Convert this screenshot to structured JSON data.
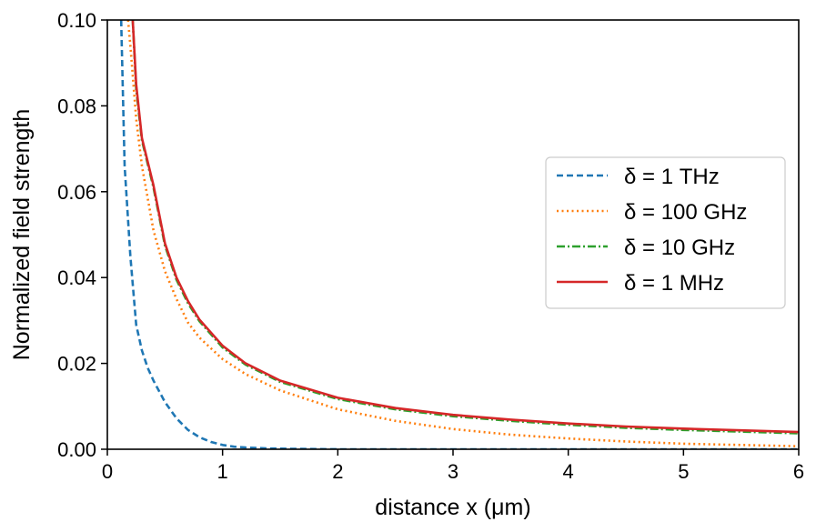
{
  "chart_data": {
    "type": "line",
    "xlabel": "distance x (μm)",
    "ylabel": "Normalized field strength",
    "xlim": [
      0,
      6
    ],
    "ylim": [
      0,
      0.1
    ],
    "xticks": [
      "0",
      "1",
      "2",
      "3",
      "4",
      "5",
      "6"
    ],
    "yticks": [
      "0.00",
      "0.02",
      "0.04",
      "0.06",
      "0.08",
      "0.10"
    ],
    "grid": false,
    "legend_position": "right",
    "series": [
      {
        "name": "δ = 1 THz",
        "color": "#1f77b4",
        "style": "dashed",
        "x": [
          0.12,
          0.15,
          0.2,
          0.25,
          0.3,
          0.35,
          0.4,
          0.5,
          0.6,
          0.7,
          0.8,
          0.9,
          1.0,
          1.1,
          1.2,
          1.4,
          1.6,
          2.0,
          3.0,
          4.0,
          5.0,
          6.0
        ],
        "y": [
          0.1,
          0.066,
          0.045,
          0.029,
          0.023,
          0.019,
          0.016,
          0.011,
          0.0072,
          0.0045,
          0.0028,
          0.0017,
          0.001,
          0.0006,
          0.0004,
          0.0002,
          0.0001,
          0.0,
          0.0,
          0.0,
          0.0,
          0.0
        ]
      },
      {
        "name": "δ = 100 GHz",
        "color": "#ff7f0e",
        "style": "dotted",
        "x": [
          0.18,
          0.2,
          0.25,
          0.3,
          0.4,
          0.5,
          0.6,
          0.7,
          0.8,
          1.0,
          1.2,
          1.5,
          2.0,
          2.5,
          3.0,
          3.5,
          4.0,
          4.5,
          5.0,
          5.5,
          6.0
        ],
        "y": [
          0.1,
          0.094,
          0.077,
          0.066,
          0.051,
          0.0415,
          0.035,
          0.0295,
          0.026,
          0.021,
          0.0175,
          0.0137,
          0.0093,
          0.0066,
          0.0047,
          0.0034,
          0.0025,
          0.0018,
          0.0013,
          0.001,
          0.0007
        ]
      },
      {
        "name": "δ = 10 GHz",
        "color": "#2ca02c",
        "style": "dashdot",
        "x": [
          0.22,
          0.25,
          0.3,
          0.4,
          0.5,
          0.6,
          0.7,
          0.8,
          1.0,
          1.2,
          1.5,
          2.0,
          2.5,
          3.0,
          3.5,
          4.0,
          4.5,
          5.0,
          5.5,
          6.0
        ],
        "y": [
          0.1,
          0.084,
          0.072,
          0.061,
          0.0475,
          0.0395,
          0.034,
          0.0298,
          0.0237,
          0.0197,
          0.0157,
          0.0117,
          0.0093,
          0.0077,
          0.0066,
          0.0057,
          0.005,
          0.0045,
          0.0041,
          0.0037
        ]
      },
      {
        "name": "δ = 1 MHz",
        "color": "#d62728",
        "style": "solid",
        "x": [
          0.22,
          0.25,
          0.3,
          0.4,
          0.5,
          0.6,
          0.7,
          0.8,
          1.0,
          1.2,
          1.5,
          2.0,
          2.5,
          3.0,
          3.5,
          4.0,
          4.5,
          5.0,
          5.5,
          6.0
        ],
        "y": [
          0.1,
          0.085,
          0.0725,
          0.0615,
          0.048,
          0.04,
          0.0345,
          0.0302,
          0.0241,
          0.02,
          0.016,
          0.012,
          0.0096,
          0.008,
          0.0069,
          0.006,
          0.0053,
          0.0048,
          0.0044,
          0.004
        ]
      }
    ]
  }
}
